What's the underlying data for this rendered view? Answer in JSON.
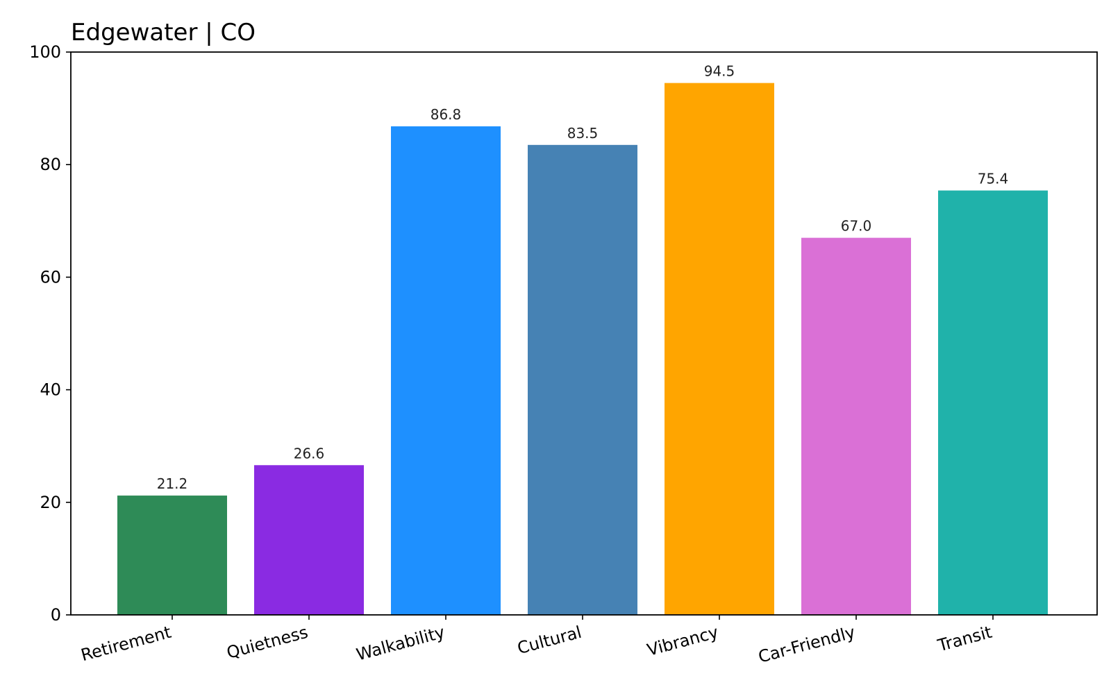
{
  "chart_data": {
    "type": "bar",
    "title": "Edgewater | CO",
    "xlabel": "",
    "ylabel": "",
    "categories": [
      "Retirement",
      "Quietness",
      "Walkability",
      "Cultural",
      "Vibrancy",
      "Car-Friendly",
      "Transit"
    ],
    "values": [
      21.2,
      26.6,
      86.8,
      83.5,
      94.5,
      67.0,
      75.4
    ],
    "value_labels": [
      "21.2",
      "26.6",
      "86.8",
      "83.5",
      "94.5",
      "67.0",
      "75.4"
    ],
    "colors": [
      "#2e8b57",
      "#8a2be2",
      "#1e90ff",
      "#4682b4",
      "#ffa500",
      "#da70d6",
      "#20b2aa"
    ],
    "ylim": [
      0,
      100
    ],
    "yticks": [
      0,
      20,
      40,
      60,
      80,
      100
    ],
    "ytick_labels": [
      "0",
      "20",
      "40",
      "60",
      "80",
      "100"
    ],
    "grid": false,
    "legend": "none"
  }
}
